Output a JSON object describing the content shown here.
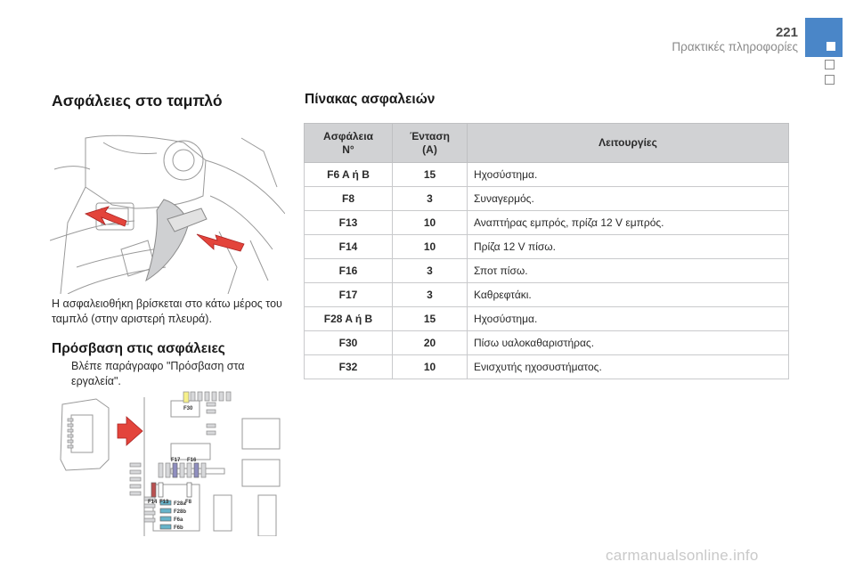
{
  "header": {
    "page_number": "221",
    "section_title": "Πρακτικές πληροφορίες",
    "accent_color": "#4a86c8"
  },
  "left": {
    "title": "Ασφάλειες στο ταμπλό",
    "location_text": "Η ασφαλειοθήκη βρίσκεται στο κάτω μέρος του ταμπλό (στην αριστερή πλευρά).",
    "access_title": "Πρόσβαση στις ασφάλειες",
    "bullet_glyph": "",
    "access_text": "Βλέπε παράγραφο \"Πρόσβαση στα εργαλεία\".",
    "fusebox_labels": [
      "F30",
      "F17",
      "F16",
      "F14",
      "F13",
      "F8",
      "F28a",
      "F28b",
      "F6a",
      "F6b"
    ]
  },
  "table": {
    "title": "Πίνακας ασφαλειών",
    "headers": {
      "fuse_line1": "Ασφάλεια",
      "fuse_line2": "N°",
      "amp_line1": "Ένταση",
      "amp_line2": "(A)",
      "function": "Λειτουργίες"
    },
    "rows": [
      {
        "fuse": "F6 A ή B",
        "amp": "15",
        "function": "Ηχοσύστημα."
      },
      {
        "fuse": "F8",
        "amp": "3",
        "function": "Συναγερμός."
      },
      {
        "fuse": "F13",
        "amp": "10",
        "function": "Αναπτήρας εμπρός, πρίζα 12 V εμπρός."
      },
      {
        "fuse": "F14",
        "amp": "10",
        "function": "Πρίζα 12 V πίσω."
      },
      {
        "fuse": "F16",
        "amp": "3",
        "function": "Σποτ πίσω."
      },
      {
        "fuse": "F17",
        "amp": "3",
        "function": "Καθρεφτάκι."
      },
      {
        "fuse": "F28 A ή B",
        "amp": "15",
        "function": "Ηχοσύστημα."
      },
      {
        "fuse": "F30",
        "amp": "20",
        "function": "Πίσω υαλοκαθαριστήρας."
      },
      {
        "fuse": "F32",
        "amp": "10",
        "function": "Ενισχυτής ηχοσυστήματος."
      }
    ]
  },
  "footer": {
    "watermark": "carmanualsonline.info"
  }
}
